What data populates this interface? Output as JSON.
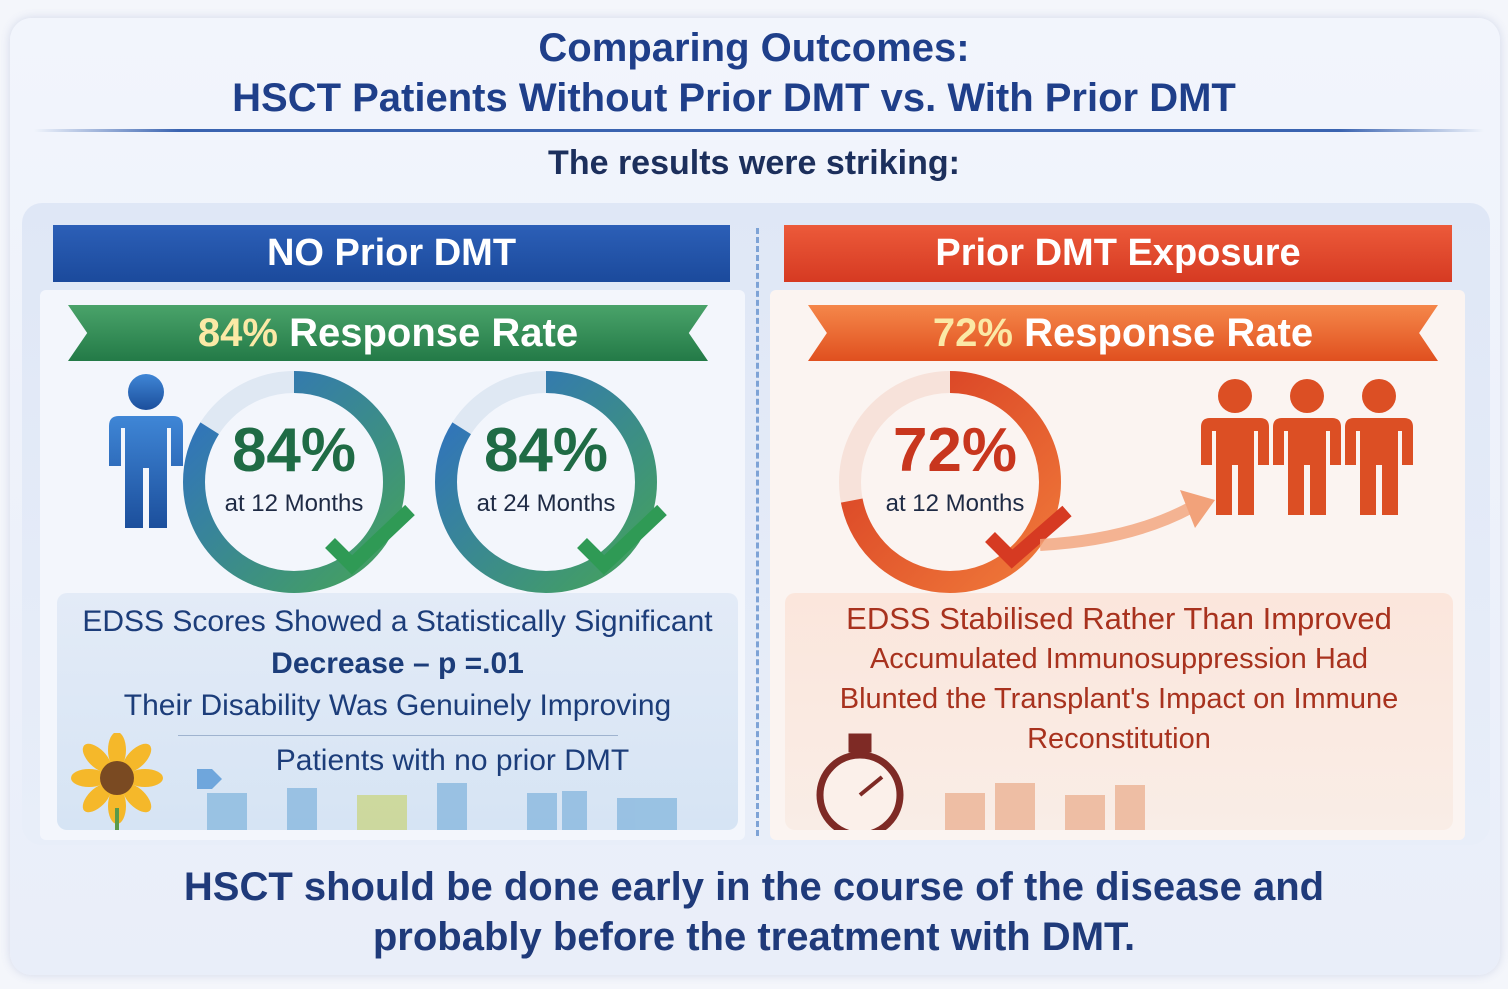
{
  "title": {
    "line1": "Comparing Outcomes:",
    "line2": "HSCT Patients Without Prior DMT vs. With Prior DMT"
  },
  "subtitle": "The results were striking:",
  "left": {
    "header": "NO Prior DMT",
    "ribbon_pct": "84%",
    "ribbon_text": " Response Rate",
    "gauges": [
      {
        "value": 84,
        "label": "84%",
        "caption": "at 12 Months"
      },
      {
        "value": 84,
        "label": "84%",
        "caption": "at 24 Months"
      }
    ],
    "lines": [
      "EDSS Scores Showed a Statistically Significant",
      "Decrease – p =.01",
      "Their Disability Was Genuinely Improving"
    ],
    "footer": "Patients with no prior DMT",
    "accent": "#1b4a9c",
    "ribbon_color": "#237a47"
  },
  "right": {
    "header": "Prior DMT Exposure",
    "ribbon_pct": "72%",
    "ribbon_text": " Response Rate",
    "gauges": [
      {
        "value": 72,
        "label": "72%",
        "caption": "at 12 Months"
      }
    ],
    "lines": [
      "EDSS Stabilised Rather Than Improved",
      "Accumulated Immunosuppression Had",
      "Blunted the Transplant's Impact on Immune",
      "Reconstitution"
    ],
    "accent": "#d63a22"
  },
  "conclusion": [
    "HSCT should be done early in the course of the disease and",
    "probably before the treatment with DMT."
  ]
}
